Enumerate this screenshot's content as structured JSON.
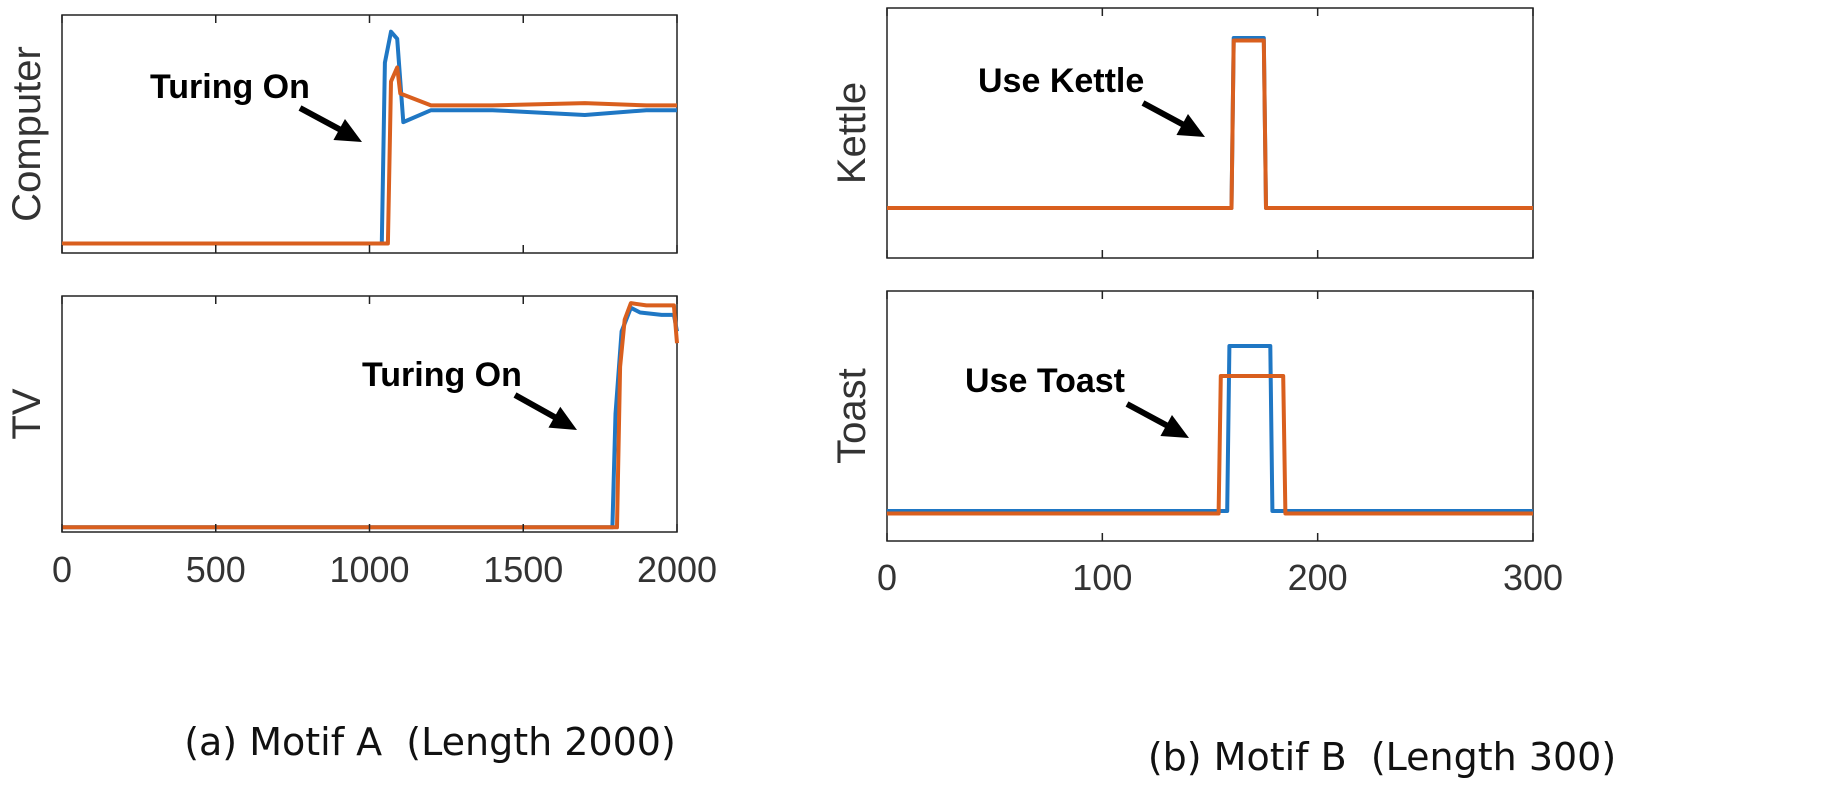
{
  "colors": {
    "series_blue": "#1f77c4",
    "series_orange": "#d95f1e",
    "axis": "#222222"
  },
  "captions": {
    "left": "(a) Motif A  (Length 2000)",
    "right": "(b) Motif B  (Length 300)"
  },
  "chart_data": [
    {
      "id": "computer",
      "type": "line",
      "ylabel": "Computer",
      "xlim": [
        0,
        2000
      ],
      "xticks": [],
      "annotation": "Turing On",
      "series": [
        {
          "color": "#1f77c4",
          "points": [
            [
              0,
              0.04
            ],
            [
              1040,
              0.04
            ],
            [
              1050,
              0.8
            ],
            [
              1070,
              0.93
            ],
            [
              1090,
              0.9
            ],
            [
              1110,
              0.55
            ],
            [
              1200,
              0.6
            ],
            [
              1400,
              0.6
            ],
            [
              1700,
              0.58
            ],
            [
              1900,
              0.6
            ],
            [
              2000,
              0.6
            ]
          ]
        },
        {
          "color": "#d95f1e",
          "points": [
            [
              0,
              0.04
            ],
            [
              1060,
              0.04
            ],
            [
              1070,
              0.72
            ],
            [
              1090,
              0.78
            ],
            [
              1100,
              0.67
            ],
            [
              1200,
              0.62
            ],
            [
              1400,
              0.62
            ],
            [
              1700,
              0.63
            ],
            [
              1900,
              0.62
            ],
            [
              2000,
              0.62
            ]
          ]
        }
      ]
    },
    {
      "id": "tv",
      "type": "line",
      "ylabel": "TV",
      "xlim": [
        0,
        2000
      ],
      "xticks": [
        "0",
        "500",
        "1000",
        "1500",
        "2000"
      ],
      "annotation": "Turing On",
      "series": [
        {
          "color": "#1f77c4",
          "points": [
            [
              0,
              0.02
            ],
            [
              1790,
              0.02
            ],
            [
              1800,
              0.5
            ],
            [
              1820,
              0.85
            ],
            [
              1850,
              0.95
            ],
            [
              1880,
              0.93
            ],
            [
              1950,
              0.92
            ],
            [
              1990,
              0.92
            ],
            [
              2000,
              0.85
            ]
          ]
        },
        {
          "color": "#d95f1e",
          "points": [
            [
              0,
              0.02
            ],
            [
              1805,
              0.02
            ],
            [
              1815,
              0.7
            ],
            [
              1830,
              0.9
            ],
            [
              1850,
              0.97
            ],
            [
              1900,
              0.96
            ],
            [
              1990,
              0.96
            ],
            [
              2000,
              0.8
            ]
          ]
        }
      ]
    },
    {
      "id": "kettle",
      "type": "line",
      "ylabel": "Kettle",
      "xlim": [
        0,
        300
      ],
      "xticks": [],
      "annotation": "Use Kettle",
      "series": [
        {
          "color": "#1f77c4",
          "points": [
            [
              0,
              0.2
            ],
            [
              160,
              0.2
            ],
            [
              161,
              0.88
            ],
            [
              175,
              0.88
            ],
            [
              176,
              0.2
            ],
            [
              300,
              0.2
            ]
          ]
        },
        {
          "color": "#d95f1e",
          "points": [
            [
              0,
              0.2
            ],
            [
              160,
              0.2
            ],
            [
              161,
              0.87
            ],
            [
              175,
              0.87
            ],
            [
              176,
              0.2
            ],
            [
              300,
              0.2
            ]
          ]
        }
      ]
    },
    {
      "id": "toast",
      "type": "line",
      "ylabel": "Toast",
      "xlim": [
        0,
        300
      ],
      "xticks": [
        "0",
        "100",
        "200",
        "300"
      ],
      "annotation": "Use Toast",
      "series": [
        {
          "color": "#1f77c4",
          "points": [
            [
              0,
              0.12
            ],
            [
              158,
              0.12
            ],
            [
              159,
              0.78
            ],
            [
              178,
              0.78
            ],
            [
              179,
              0.12
            ],
            [
              300,
              0.12
            ]
          ]
        },
        {
          "color": "#d95f1e",
          "points": [
            [
              0,
              0.11
            ],
            [
              154,
              0.11
            ],
            [
              155,
              0.66
            ],
            [
              184,
              0.66
            ],
            [
              185,
              0.11
            ],
            [
              300,
              0.11
            ]
          ]
        }
      ]
    }
  ]
}
